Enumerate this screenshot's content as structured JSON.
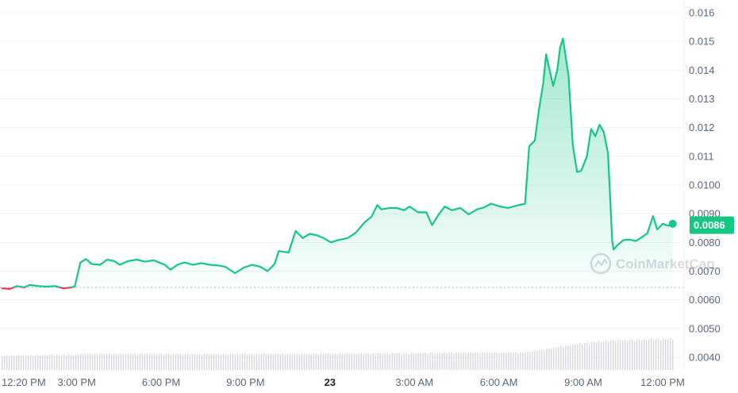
{
  "chart_data": {
    "type": "area",
    "title": "",
    "xlabel": "",
    "ylabel": "",
    "ylim": [
      0.0036,
      0.0165
    ],
    "y_ticks": [
      "0.016",
      "0.015",
      "0.014",
      "0.013",
      "0.012",
      "0.011",
      "0.0100",
      "0.0090",
      "0.0080",
      "0.0070",
      "0.0060",
      "0.0050",
      "0.0040"
    ],
    "y_tick_values": [
      0.016,
      0.015,
      0.014,
      0.013,
      0.012,
      0.011,
      0.01,
      0.009,
      0.008,
      0.007,
      0.006,
      0.005,
      0.004
    ],
    "x_ticks": [
      "12:20 PM",
      "3:00 PM",
      "6:00 PM",
      "9:00 PM",
      "23",
      "3:00 AM",
      "6:00 AM",
      "9:00 AM",
      "12:00 PM"
    ],
    "x_tick_hours": [
      0.0,
      2.67,
      5.67,
      8.67,
      11.67,
      14.67,
      17.67,
      20.67,
      23.67
    ],
    "bold_x_tick": "23",
    "x_unit": "hours since 12:20 PM",
    "reference_price": 0.00643,
    "current_price": 0.0086,
    "current_price_label": "0.0086",
    "watermark": "CoinMarketCap",
    "colors": {
      "up": "#16c784",
      "down": "#ea3943",
      "grid": "#eff2f5",
      "axis_text": "#58667e",
      "volume": "#d5d9df"
    },
    "series": [
      {
        "values": [
          [
            0.0,
            0.0064
          ],
          [
            0.3,
            0.00638
          ],
          [
            0.55,
            0.00648
          ],
          [
            0.8,
            0.00643
          ],
          [
            1.0,
            0.00652
          ],
          [
            1.3,
            0.00648
          ],
          [
            1.6,
            0.00646
          ],
          [
            1.9,
            0.00648
          ],
          [
            2.2,
            0.0064
          ],
          [
            2.45,
            0.00643
          ],
          [
            2.6,
            0.00646
          ],
          [
            2.8,
            0.0073
          ],
          [
            3.0,
            0.00742
          ],
          [
            3.2,
            0.00725
          ],
          [
            3.5,
            0.00722
          ],
          [
            3.75,
            0.0074
          ],
          [
            4.0,
            0.00735
          ],
          [
            4.2,
            0.00722
          ],
          [
            4.5,
            0.00735
          ],
          [
            4.8,
            0.0074
          ],
          [
            5.1,
            0.00733
          ],
          [
            5.4,
            0.00738
          ],
          [
            5.8,
            0.00722
          ],
          [
            6.0,
            0.00705
          ],
          [
            6.25,
            0.00722
          ],
          [
            6.5,
            0.0073
          ],
          [
            6.8,
            0.00722
          ],
          [
            7.1,
            0.00728
          ],
          [
            7.4,
            0.00722
          ],
          [
            7.7,
            0.0072
          ],
          [
            7.95,
            0.00715
          ],
          [
            8.3,
            0.00693
          ],
          [
            8.6,
            0.00712
          ],
          [
            8.9,
            0.00722
          ],
          [
            9.2,
            0.00715
          ],
          [
            9.45,
            0.007
          ],
          [
            9.7,
            0.00725
          ],
          [
            9.85,
            0.0077
          ],
          [
            10.2,
            0.00765
          ],
          [
            10.45,
            0.0084
          ],
          [
            10.7,
            0.00815
          ],
          [
            10.95,
            0.0083
          ],
          [
            11.2,
            0.00825
          ],
          [
            11.45,
            0.00815
          ],
          [
            11.7,
            0.008
          ],
          [
            11.95,
            0.00808
          ],
          [
            12.3,
            0.00815
          ],
          [
            12.6,
            0.00835
          ],
          [
            12.9,
            0.0087
          ],
          [
            13.15,
            0.0089
          ],
          [
            13.35,
            0.0093
          ],
          [
            13.5,
            0.00915
          ],
          [
            13.8,
            0.0092
          ],
          [
            14.05,
            0.0092
          ],
          [
            14.3,
            0.00912
          ],
          [
            14.5,
            0.00925
          ],
          [
            14.8,
            0.00905
          ],
          [
            15.1,
            0.00905
          ],
          [
            15.3,
            0.0086
          ],
          [
            15.55,
            0.009
          ],
          [
            15.75,
            0.00925
          ],
          [
            16.0,
            0.00912
          ],
          [
            16.3,
            0.0092
          ],
          [
            16.6,
            0.00898
          ],
          [
            16.9,
            0.00915
          ],
          [
            17.15,
            0.00922
          ],
          [
            17.4,
            0.00935
          ],
          [
            17.7,
            0.00925
          ],
          [
            18.0,
            0.0092
          ],
          [
            18.3,
            0.00928
          ],
          [
            18.6,
            0.00935
          ],
          [
            18.75,
            0.01135
          ],
          [
            18.95,
            0.01155
          ],
          [
            19.1,
            0.01265
          ],
          [
            19.25,
            0.01355
          ],
          [
            19.35,
            0.01455
          ],
          [
            19.5,
            0.0139
          ],
          [
            19.6,
            0.01345
          ],
          [
            19.75,
            0.014
          ],
          [
            19.85,
            0.0148
          ],
          [
            19.95,
            0.0151
          ],
          [
            20.15,
            0.0138
          ],
          [
            20.3,
            0.0114
          ],
          [
            20.45,
            0.01045
          ],
          [
            20.6,
            0.0105
          ],
          [
            20.8,
            0.011
          ],
          [
            20.95,
            0.01195
          ],
          [
            21.1,
            0.0117
          ],
          [
            21.25,
            0.0121
          ],
          [
            21.4,
            0.01185
          ],
          [
            21.55,
            0.0111
          ],
          [
            21.7,
            0.00805
          ],
          [
            21.75,
            0.00775
          ],
          [
            21.9,
            0.00792
          ],
          [
            22.1,
            0.00808
          ],
          [
            22.3,
            0.0081
          ],
          [
            22.55,
            0.00805
          ],
          [
            22.75,
            0.00818
          ],
          [
            22.95,
            0.00832
          ],
          [
            23.15,
            0.00892
          ],
          [
            23.3,
            0.00845
          ],
          [
            23.5,
            0.00865
          ],
          [
            23.7,
            0.00858
          ],
          [
            23.85,
            0.00865
          ]
        ]
      }
    ],
    "volume": [
      [
        0.0,
        0.9
      ],
      [
        1.5,
        0.92
      ],
      [
        2.6,
        0.95
      ],
      [
        2.8,
        1.0
      ],
      [
        5.0,
        1.0
      ],
      [
        8.0,
        0.98
      ],
      [
        11.0,
        1.0
      ],
      [
        14.0,
        1.05
      ],
      [
        17.0,
        1.08
      ],
      [
        18.6,
        1.1
      ],
      [
        19.5,
        1.35
      ],
      [
        20.6,
        1.65
      ],
      [
        21.7,
        1.85
      ],
      [
        23.85,
        1.95
      ]
    ]
  }
}
